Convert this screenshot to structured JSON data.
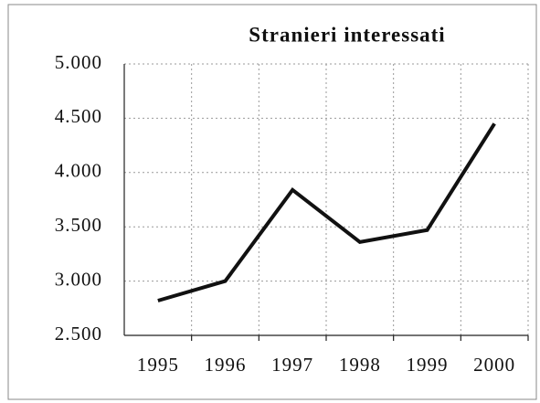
{
  "chart_data": {
    "type": "line",
    "title": "Stranieri interessati",
    "categories": [
      "1995",
      "1996",
      "1997",
      "1998",
      "1999",
      "2000"
    ],
    "values": [
      2820,
      3000,
      3840,
      3360,
      3470,
      4450
    ],
    "color": "#111111",
    "ylim": [
      2500,
      5000
    ],
    "yticks": [
      {
        "value": 2500,
        "label": "2.500"
      },
      {
        "value": 3000,
        "label": "3.000"
      },
      {
        "value": 3500,
        "label": "3.500"
      },
      {
        "value": 4000,
        "label": "4.000"
      },
      {
        "value": 4500,
        "label": "4.500"
      },
      {
        "value": 5000,
        "label": "5.000"
      }
    ],
    "grid": true
  }
}
